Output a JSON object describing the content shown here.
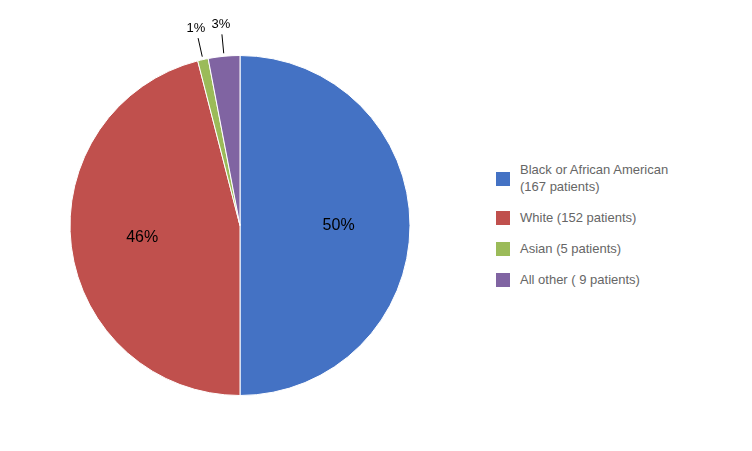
{
  "chart_data": {
    "type": "pie",
    "categories": [
      "Black or African American\n (167 patients)",
      "White (152 patients)",
      "Asian (5 patients)",
      "All other ( 9 patients)"
    ],
    "values": [
      50,
      46,
      1,
      3
    ],
    "value_labels": [
      "50%",
      "46%",
      "1%",
      "3%"
    ],
    "colors": [
      "#4472C4",
      "#C0504D",
      "#9BBB59",
      "#8064A2"
    ],
    "data_labels": true,
    "legend": "right"
  }
}
